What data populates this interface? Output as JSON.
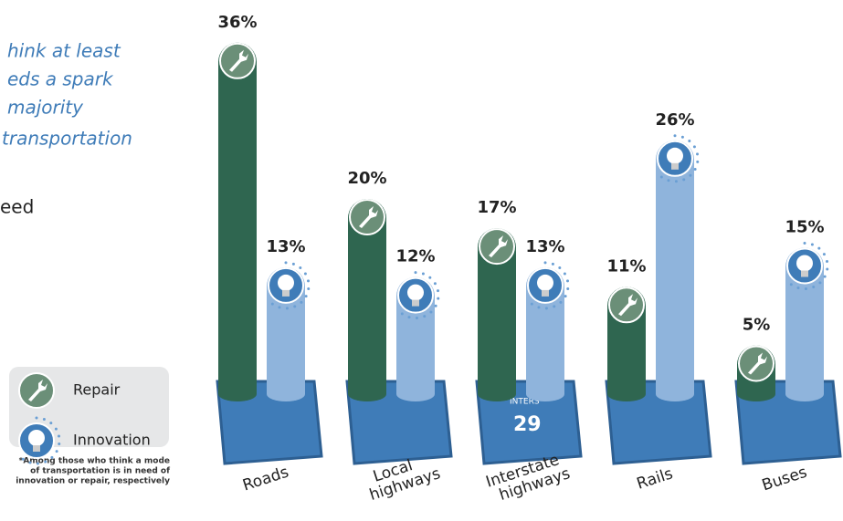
{
  "intro_lines": [
    "hink at least",
    "eds a spark",
    "majority",
    "transportation"
  ],
  "intro_tail": "eed",
  "footnote": [
    "*Among those who think a mode",
    "of transportation is in need of",
    "innovation or repair, respectively"
  ],
  "interstate_shield": {
    "label": "INTERS",
    "number": "29"
  },
  "chart_data": {
    "type": "bar",
    "categories": [
      [
        "Roads"
      ],
      [
        "Local",
        "highways"
      ],
      [
        "Interstate",
        "highways"
      ],
      [
        "Rails"
      ],
      [
        "Buses"
      ]
    ],
    "series": [
      {
        "name": "Repair",
        "color": "#2f6650",
        "values": [
          36,
          20,
          17,
          11,
          5
        ],
        "value_labels": [
          "36%",
          "20%",
          "17%",
          "11%",
          "5%"
        ]
      },
      {
        "name": "Innovation",
        "color": "#8fb4dc",
        "values": [
          13,
          12,
          13,
          26,
          15
        ],
        "value_labels": [
          "13%",
          "12%",
          "13%",
          "26%",
          "15%"
        ]
      }
    ]
  }
}
